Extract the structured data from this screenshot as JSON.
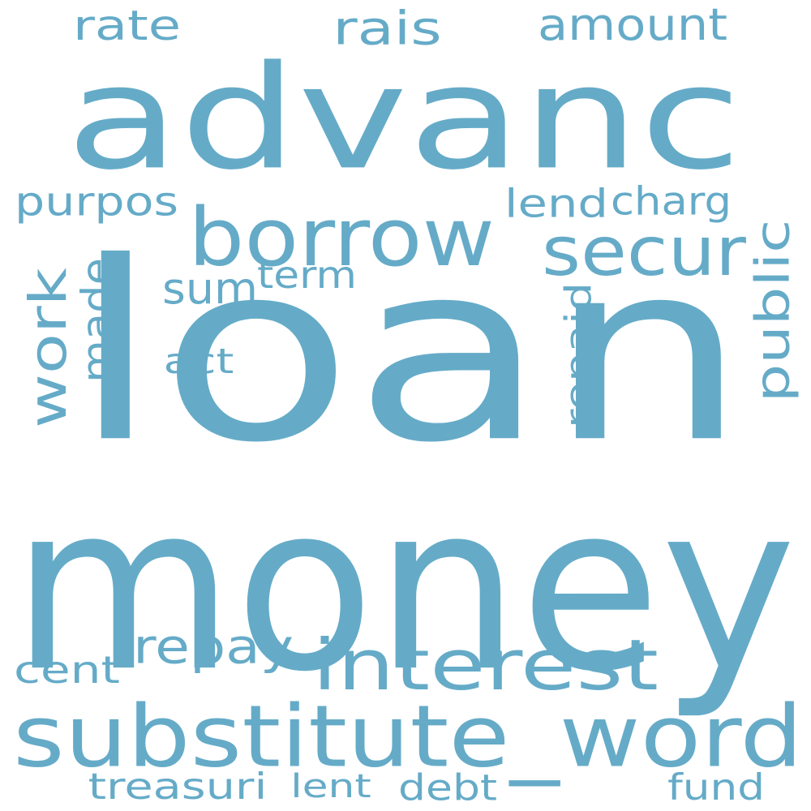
{
  "color": "#65abc8",
  "words": [
    {
      "text": "loan"
    },
    {
      "text": "money"
    },
    {
      "text": "advanc"
    },
    {
      "text": "substitute_word"
    },
    {
      "text": "borrow"
    },
    {
      "text": "interest"
    },
    {
      "text": "secur"
    },
    {
      "text": "work"
    },
    {
      "text": "repay"
    },
    {
      "text": "amount"
    },
    {
      "text": "rais"
    },
    {
      "text": "rate"
    },
    {
      "text": "public"
    },
    {
      "text": "made"
    },
    {
      "text": "purpos"
    },
    {
      "text": "sum"
    },
    {
      "text": "repaid"
    },
    {
      "text": "charg"
    },
    {
      "text": "lend"
    },
    {
      "text": "term"
    },
    {
      "text": "act"
    },
    {
      "text": "cent"
    },
    {
      "text": "treasuri"
    },
    {
      "text": "lent"
    },
    {
      "text": "debt"
    },
    {
      "text": "fund"
    }
  ]
}
